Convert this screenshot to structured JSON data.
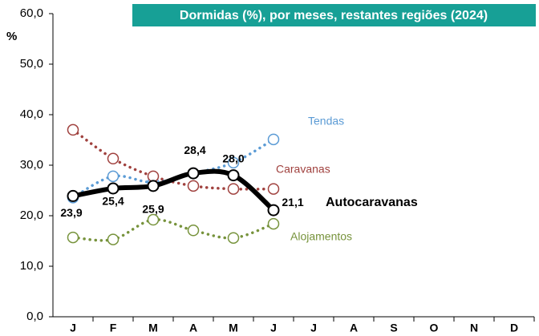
{
  "chart_data": {
    "type": "line",
    "title": "Dormidas (%), por meses, restantes regiões (2024)",
    "ylabel": "%",
    "categories": [
      "J",
      "F",
      "M",
      "A",
      "M",
      "J",
      "J",
      "A",
      "S",
      "O",
      "N",
      "D"
    ],
    "ylim": [
      0,
      60
    ],
    "yticks": [
      {
        "value": 0,
        "label": "0,0"
      },
      {
        "value": 10,
        "label": "10,0"
      },
      {
        "value": 20,
        "label": "20,0"
      },
      {
        "value": 30,
        "label": "30,0"
      },
      {
        "value": 40,
        "label": "40,0"
      },
      {
        "value": 50,
        "label": "50,0"
      },
      {
        "value": 60,
        "label": "60,0"
      }
    ],
    "series": [
      {
        "name": "Tendas",
        "color": "#5b9bd5",
        "values": [
          23.6,
          27.8,
          26.6,
          28.4,
          30.5,
          35.1,
          null,
          null,
          null,
          null,
          null,
          null
        ]
      },
      {
        "name": "Caravanas",
        "color": "#a0413e",
        "values": [
          37.0,
          31.3,
          27.8,
          25.9,
          25.3,
          25.3,
          null,
          null,
          null,
          null,
          null,
          null
        ]
      },
      {
        "name": "Autocaravanas",
        "color": "#000000",
        "values": [
          23.9,
          25.4,
          25.9,
          28.4,
          28.0,
          21.1,
          null,
          null,
          null,
          null,
          null,
          null
        ],
        "value_labels": [
          "23,9",
          "25,4",
          "25,9",
          "28,4",
          "28,0",
          "21,1",
          null,
          null,
          null,
          null,
          null,
          null
        ]
      },
      {
        "name": "Alojamentos",
        "color": "#77933c",
        "values": [
          15.7,
          15.3,
          19.2,
          17.1,
          15.6,
          18.4,
          null,
          null,
          null,
          null,
          null,
          null
        ]
      }
    ]
  }
}
